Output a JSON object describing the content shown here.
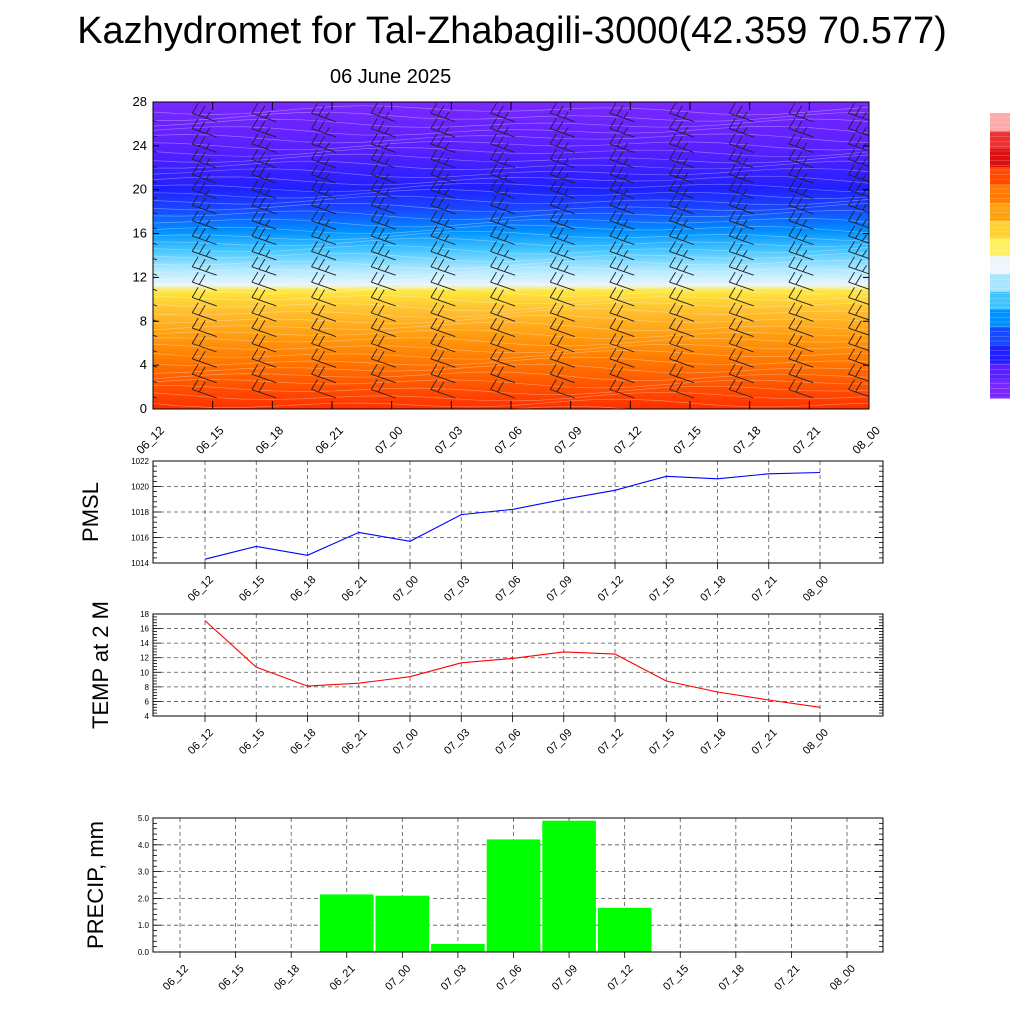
{
  "header": {
    "title": "Kazhydromet for Tal-Zhabagili-3000(42.359 70.577)",
    "date": "06 June 2025"
  },
  "time_labels": [
    "06_12",
    "06_15",
    "06_18",
    "06_21",
    "07_00",
    "07_03",
    "07_06",
    "07_09",
    "07_12",
    "07_15",
    "07_18",
    "07_21",
    "08_00"
  ],
  "chart_data": [
    {
      "type": "heatmap",
      "title": "",
      "xlabel": "",
      "ylabel": "",
      "x": [
        "06_12",
        "06_15",
        "06_18",
        "06_21",
        "07_00",
        "07_03",
        "07_06",
        "07_09",
        "07_12",
        "07_15",
        "07_18",
        "07_21",
        "08_00"
      ],
      "ylim": [
        0,
        28
      ],
      "yticks": [
        0,
        4,
        8,
        12,
        16,
        20,
        24,
        28
      ],
      "colormap": [
        "#ff3000",
        "#ff5500",
        "#ff7a00",
        "#ff9d10",
        "#ffc030",
        "#ffe840",
        "#e8f6ff",
        "#a8e6ff",
        "#40c4ff",
        "#0090ff",
        "#1848ff",
        "#2020ff",
        "#5a20ff",
        "#7a28ff"
      ],
      "colorbar_colors": [
        "#7a28ff",
        "#5a20ff",
        "#2020ff",
        "#1848ff",
        "#0090ff",
        "#40c4ff",
        "#a8e6ff",
        "#f0f6ff",
        "#fff060",
        "#ffd030",
        "#ffa010",
        "#ff7a00",
        "#ff4a00",
        "#dd1010",
        "#ee3030",
        "#ffaaaa"
      ],
      "overlay": "wind barbs"
    },
    {
      "type": "line",
      "ylabel": "PMSL",
      "x": [
        "06_12",
        "06_15",
        "06_18",
        "06_21",
        "07_00",
        "07_03",
        "07_06",
        "07_09",
        "07_12",
        "07_15",
        "07_18",
        "07_21",
        "08_00"
      ],
      "series": [
        {
          "values": [
            1014.3,
            1015.3,
            1014.6,
            1016.4,
            1015.7,
            1017.8,
            1018.2,
            1019.0,
            1019.7,
            1020.8,
            1020.6,
            1021.0,
            1021.1
          ],
          "color": "#0000ff"
        }
      ],
      "ylim": [
        1014,
        1022
      ],
      "yticks": [
        1014,
        1016,
        1018,
        1020,
        1022
      ],
      "grid": true
    },
    {
      "type": "line",
      "ylabel": "TEMP at 2 M",
      "x": [
        "06_12",
        "06_15",
        "06_18",
        "06_21",
        "07_00",
        "07_03",
        "07_06",
        "07_09",
        "07_12",
        "07_15",
        "07_18",
        "07_21",
        "08_00"
      ],
      "series": [
        {
          "values": [
            17.1,
            10.7,
            8.1,
            8.5,
            9.4,
            11.3,
            11.9,
            12.8,
            12.5,
            8.8,
            7.3,
            6.2,
            5.2
          ],
          "color": "#ff0000"
        }
      ],
      "ylim": [
        4,
        18
      ],
      "yticks": [
        4,
        6,
        8,
        10,
        12,
        14,
        16,
        18
      ],
      "grid": true
    },
    {
      "type": "bar",
      "ylabel": "PRECIP, mm",
      "x": [
        "06_12",
        "06_15",
        "06_18",
        "06_21",
        "07_00",
        "07_03",
        "07_06",
        "07_09",
        "07_12",
        "07_15",
        "07_18",
        "07_21",
        "08_00"
      ],
      "values": [
        0,
        0,
        0,
        2.15,
        2.1,
        0.3,
        4.2,
        4.9,
        1.65,
        0,
        0,
        0,
        0
      ],
      "color": "#00ff00",
      "ylim": [
        0,
        5
      ],
      "yticks": [
        "0.0",
        "1.0",
        "2.0",
        "3.0",
        "4.0",
        "5.0"
      ],
      "grid": true
    }
  ]
}
